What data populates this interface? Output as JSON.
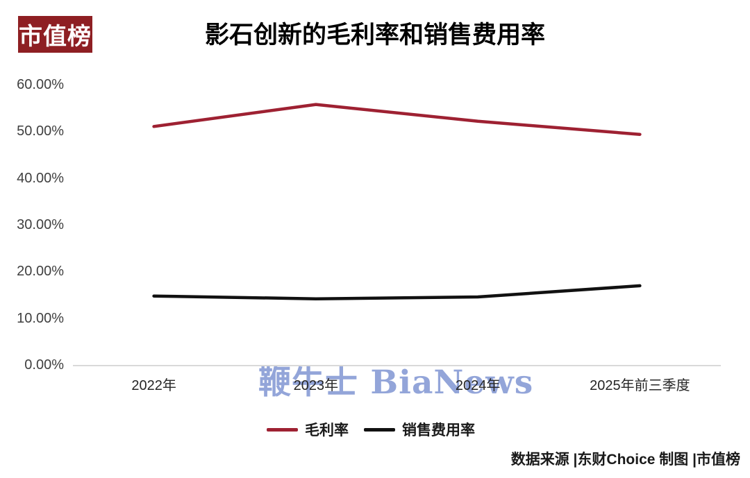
{
  "logo": {
    "text": "市值榜",
    "bg_color": "#8e1f23",
    "text_color": "#ffffff"
  },
  "watermark": {
    "text": "鞭牛士 BiaNews",
    "color": "#93a5d9"
  },
  "footer": {
    "attribution": "数据来源 |东财Choice  制图 |市值榜"
  },
  "chart_data": {
    "type": "line",
    "title": "影石创新的毛利率和销售费用率",
    "categories": [
      "2022年",
      "2023年",
      "2024年",
      "2025年前三季度"
    ],
    "series": [
      {
        "name": "毛利率",
        "color": "#9e2132",
        "values": [
          51.2,
          55.9,
          52.3,
          49.5
        ]
      },
      {
        "name": "销售费用率",
        "color": "#111111",
        "values": [
          14.9,
          14.3,
          14.7,
          17.1
        ]
      }
    ],
    "xlabel": "",
    "ylabel": "",
    "ylim": [
      0,
      60
    ],
    "ytick_labels": [
      "0.00%",
      "10.00%",
      "20.00%",
      "30.00%",
      "40.00%",
      "50.00%",
      "60.00%"
    ],
    "grid": false,
    "legend_position": "bottom",
    "axis_line_color": "#d9d9d9"
  }
}
